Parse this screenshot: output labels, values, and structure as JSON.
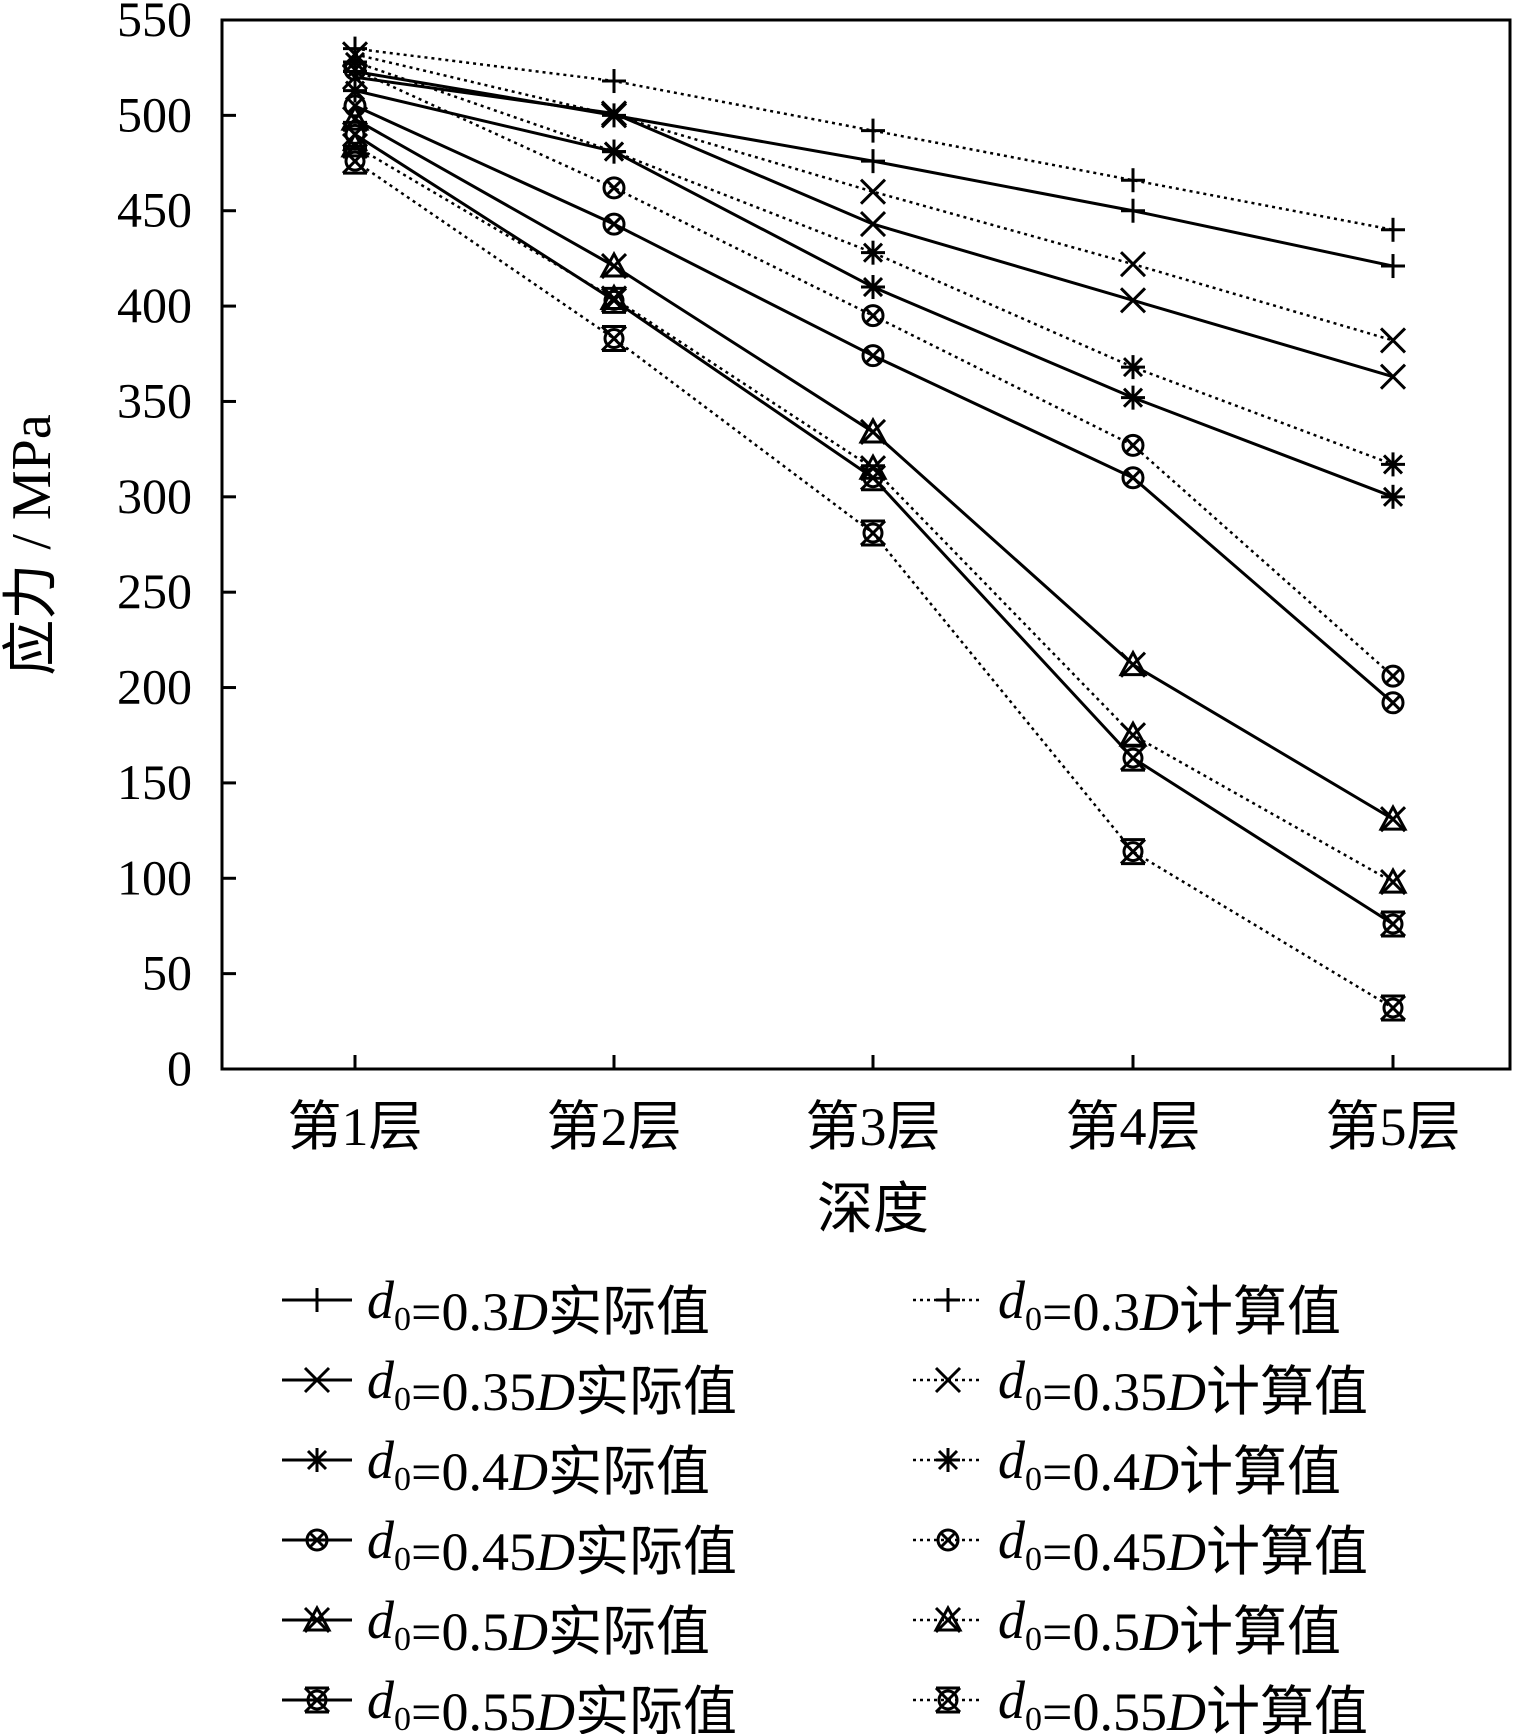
{
  "chart_data": {
    "type": "line",
    "categories": [
      "第1层",
      "第2层",
      "第3层",
      "第4层",
      "第5层"
    ],
    "xlabel": "深度",
    "ylabel": "应力 / MPa",
    "ylim": [
      0,
      550
    ],
    "yticks": [
      0,
      50,
      100,
      150,
      200,
      250,
      300,
      350,
      400,
      450,
      500,
      550
    ],
    "grid": false,
    "legend_position": "bottom",
    "series": [
      {
        "name": "d0=0.3D实际值",
        "d": "0.3D",
        "kind": "实际值",
        "style": "solid",
        "marker": "plus",
        "values": [
          523,
          500,
          476,
          450,
          421
        ]
      },
      {
        "name": "d0=0.3D计算值",
        "d": "0.3D",
        "kind": "计算值",
        "style": "dotted",
        "marker": "plus",
        "values": [
          535,
          518,
          492,
          466,
          440
        ]
      },
      {
        "name": "d0=0.35D实际值",
        "d": "0.35D",
        "kind": "实际值",
        "style": "solid",
        "marker": "x",
        "values": [
          520,
          501,
          443,
          403,
          363
        ]
      },
      {
        "name": "d0=0.35D计算值",
        "d": "0.35D",
        "kind": "计算值",
        "style": "dotted",
        "marker": "x",
        "values": [
          532,
          500,
          460,
          422,
          382
        ]
      },
      {
        "name": "d0=0.4D实际值",
        "d": "0.4D",
        "kind": "实际值",
        "style": "solid",
        "marker": "asterisk",
        "values": [
          513,
          481,
          410,
          352,
          300
        ]
      },
      {
        "name": "d0=0.4D计算值",
        "d": "0.4D",
        "kind": "计算值",
        "style": "dotted",
        "marker": "asterisk",
        "values": [
          528,
          481,
          428,
          368,
          317
        ]
      },
      {
        "name": "d0=0.45D实际值",
        "d": "0.45D",
        "kind": "实际值",
        "style": "solid",
        "marker": "circlex",
        "values": [
          505,
          443,
          374,
          310,
          192
        ]
      },
      {
        "name": "d0=0.45D计算值",
        "d": "0.45D",
        "kind": "计算值",
        "style": "dotted",
        "marker": "circlex",
        "values": [
          524,
          462,
          395,
          327,
          206
        ]
      },
      {
        "name": "d0=0.5D实际值",
        "d": "0.5D",
        "kind": "实际值",
        "style": "solid",
        "marker": "triangle",
        "values": [
          498,
          421,
          334,
          212,
          131
        ]
      },
      {
        "name": "d0=0.5D计算值",
        "d": "0.5D",
        "kind": "计算值",
        "style": "dotted",
        "marker": "triangle",
        "values": [
          484,
          404,
          315,
          175,
          98
        ]
      },
      {
        "name": "d0=0.55D实际值",
        "d": "0.55D",
        "kind": "实际值",
        "style": "solid",
        "marker": "bowtie",
        "values": [
          490,
          403,
          310,
          163,
          76
        ]
      },
      {
        "name": "d0=0.55D计算值",
        "d": "0.55D",
        "kind": "计算值",
        "style": "dotted",
        "marker": "bowtie",
        "values": [
          476,
          383,
          281,
          114,
          32
        ]
      }
    ]
  },
  "legend": {
    "subscript": "0",
    "variable": "d",
    "equals": "=",
    "D": "D"
  }
}
